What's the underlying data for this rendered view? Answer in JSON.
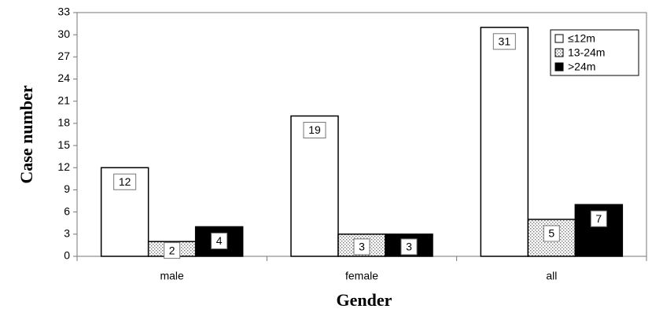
{
  "chart_data": {
    "type": "bar",
    "x_label": "Gender",
    "y_label": "Case number",
    "categories": [
      "male",
      "female",
      "all"
    ],
    "series": [
      {
        "name": "≤12m",
        "color": "#ffffff",
        "values": [
          12,
          19,
          31
        ]
      },
      {
        "name": "13-24m",
        "color": "#777777",
        "pattern": "dots",
        "values": [
          2,
          3,
          5
        ]
      },
      {
        "name": ">24m",
        "color": "#000000",
        "values": [
          4,
          3,
          7
        ]
      }
    ],
    "ylim": [
      0,
      33
    ],
    "yticks": [
      0,
      3,
      6,
      9,
      12,
      15,
      18,
      21,
      24,
      27,
      30,
      33
    ],
    "legend": "upper right",
    "data_labels": true
  }
}
